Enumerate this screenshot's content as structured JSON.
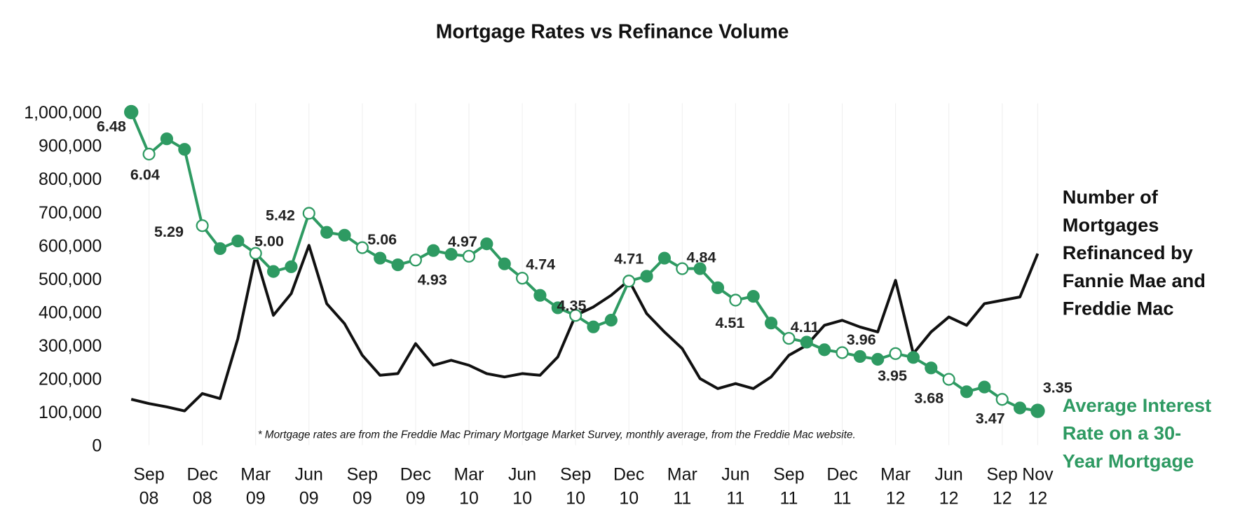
{
  "chart_data": {
    "type": "line",
    "title": "Mortgage Rates vs Refinance Volume",
    "xlabel": "",
    "ylabel": "",
    "ylim": [
      0,
      1000000
    ],
    "yticks": [
      "0",
      "100,000",
      "200,000",
      "300,000",
      "400,000",
      "500,000",
      "600,000",
      "700,000",
      "800,000",
      "900,000",
      "1,000,000"
    ],
    "x": [
      "Aug 08",
      "Sep 08",
      "Oct 08",
      "Nov 08",
      "Dec 08",
      "Jan 09",
      "Feb 09",
      "Mar 09",
      "Apr 09",
      "May 09",
      "Jun 09",
      "Jul 09",
      "Aug 09",
      "Sep 09",
      "Oct 09",
      "Nov 09",
      "Dec 09",
      "Jan 10",
      "Feb 10",
      "Mar 10",
      "Apr 10",
      "May 10",
      "Jun 10",
      "Jul 10",
      "Aug 10",
      "Sep 10",
      "Oct 10",
      "Nov 10",
      "Dec 10",
      "Jan 11",
      "Feb 11",
      "Mar 11",
      "Apr 11",
      "May 11",
      "Jun 11",
      "Jul 11",
      "Aug 11",
      "Sep 11",
      "Oct 11",
      "Nov 11",
      "Dec 11",
      "Jan 12",
      "Feb 12",
      "Mar 12",
      "Apr 12",
      "May 12",
      "Jun 12",
      "Jul 12",
      "Aug 12",
      "Sep 12",
      "Oct 12",
      "Nov 12"
    ],
    "xticks": [
      {
        "index": 1,
        "line1": "Sep",
        "line2": "08"
      },
      {
        "index": 4,
        "line1": "Dec",
        "line2": "08"
      },
      {
        "index": 7,
        "line1": "Mar",
        "line2": "09"
      },
      {
        "index": 10,
        "line1": "Jun",
        "line2": "09"
      },
      {
        "index": 13,
        "line1": "Sep",
        "line2": "09"
      },
      {
        "index": 16,
        "line1": "Dec",
        "line2": "09"
      },
      {
        "index": 19,
        "line1": "Mar",
        "line2": "10"
      },
      {
        "index": 22,
        "line1": "Jun",
        "line2": "10"
      },
      {
        "index": 25,
        "line1": "Sep",
        "line2": "10"
      },
      {
        "index": 28,
        "line1": "Dec",
        "line2": "10"
      },
      {
        "index": 31,
        "line1": "Mar",
        "line2": "11"
      },
      {
        "index": 34,
        "line1": "Jun",
        "line2": "11"
      },
      {
        "index": 37,
        "line1": "Sep",
        "line2": "11"
      },
      {
        "index": 40,
        "line1": "Dec",
        "line2": "11"
      },
      {
        "index": 43,
        "line1": "Mar",
        "line2": "12"
      },
      {
        "index": 46,
        "line1": "Jun",
        "line2": "12"
      },
      {
        "index": 49,
        "line1": "Sep",
        "line2": "12"
      },
      {
        "index": 51,
        "line1": "Nov",
        "line2": "12"
      }
    ],
    "series": [
      {
        "name": "Number of Mortgages Refinanced by Fannie Mae and Freddie Mac",
        "legend_lines": [
          "Number of",
          "Mortgages",
          "Refinanced by",
          "Fannie Mae and",
          "Freddie Mac"
        ],
        "color": "#111111",
        "axis": "left",
        "values": [
          138000,
          125000,
          115000,
          103000,
          155000,
          140000,
          320000,
          570000,
          390000,
          455000,
          600000,
          425000,
          365000,
          270000,
          210000,
          215000,
          305000,
          240000,
          255000,
          240000,
          215000,
          205000,
          215000,
          210000,
          265000,
          390000,
          415000,
          450000,
          495000,
          395000,
          340000,
          290000,
          200000,
          170000,
          185000,
          170000,
          205000,
          270000,
          300000,
          360000,
          375000,
          355000,
          340000,
          495000,
          275000,
          340000,
          385000,
          360000,
          425000,
          435000,
          445000,
          575000
        ]
      },
      {
        "name": "Average Interest Rate on a 30-Year Mortgage",
        "legend_lines": [
          "Average Interest",
          "Rate on a 30-",
          "Year Mortgage"
        ],
        "color": "#2e9a62",
        "axis": "hidden-right",
        "ylim": [
          2.99,
          6.48
        ],
        "values": [
          6.48,
          6.04,
          6.2,
          6.09,
          5.29,
          5.05,
          5.13,
          5.0,
          4.81,
          4.86,
          5.42,
          5.22,
          5.19,
          5.06,
          4.95,
          4.88,
          4.93,
          5.03,
          4.99,
          4.97,
          5.1,
          4.89,
          4.74,
          4.56,
          4.43,
          4.35,
          4.23,
          4.3,
          4.71,
          4.76,
          4.95,
          4.84,
          4.84,
          4.64,
          4.51,
          4.55,
          4.27,
          4.11,
          4.07,
          3.99,
          3.96,
          3.92,
          3.89,
          3.95,
          3.91,
          3.8,
          3.68,
          3.55,
          3.6,
          3.47,
          3.38,
          3.35
        ],
        "data_labels": [
          {
            "index": 0,
            "text": "6.48"
          },
          {
            "index": 1,
            "text": "6.04"
          },
          {
            "index": 4,
            "text": "5.29"
          },
          {
            "index": 7,
            "text": "5.00"
          },
          {
            "index": 10,
            "text": "5.42"
          },
          {
            "index": 13,
            "text": "5.06"
          },
          {
            "index": 16,
            "text": "4.93"
          },
          {
            "index": 19,
            "text": "4.97"
          },
          {
            "index": 22,
            "text": "4.74"
          },
          {
            "index": 25,
            "text": "4.35"
          },
          {
            "index": 28,
            "text": "4.71"
          },
          {
            "index": 31,
            "text": "4.84"
          },
          {
            "index": 34,
            "text": "4.51"
          },
          {
            "index": 37,
            "text": "4.11"
          },
          {
            "index": 40,
            "text": "3.96"
          },
          {
            "index": 43,
            "text": "3.95"
          },
          {
            "index": 46,
            "text": "3.68"
          },
          {
            "index": 49,
            "text": "3.47"
          },
          {
            "index": 51,
            "text": "3.35"
          }
        ]
      }
    ],
    "grid": "faint vertical",
    "legend": "right (inline labels)",
    "footnote": "* Mortgage rates are from the Freddie Mac Primary Mortgage Market Survey, monthly average, from the Freddie Mac website."
  }
}
